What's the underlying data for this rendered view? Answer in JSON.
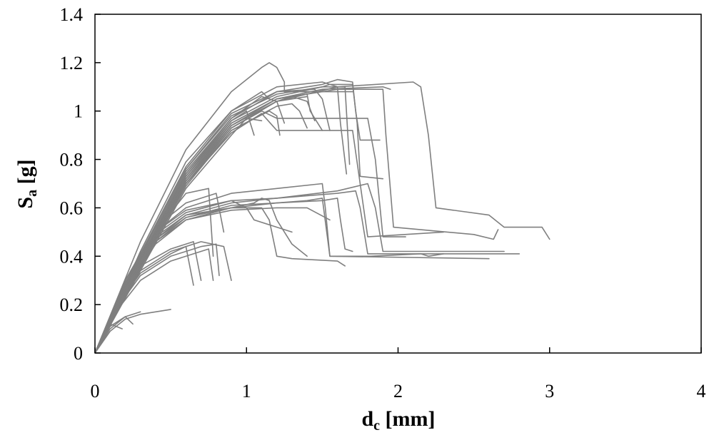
{
  "chart_data": {
    "type": "line",
    "title": "",
    "xlabel": {
      "main": "d",
      "sub": "c",
      "unit": " [mm]"
    },
    "ylabel": {
      "main": "S",
      "sub": "a",
      "unit": " [g]"
    },
    "xlim": [
      0,
      4
    ],
    "ylim": [
      0,
      1.4
    ],
    "xticks": [
      0,
      1,
      2,
      3,
      4
    ],
    "xtick_labels": [
      "0",
      "1",
      "2",
      "3",
      "4"
    ],
    "yticks": [
      0,
      0.2,
      0.4,
      0.6,
      0.8,
      1.0,
      1.2,
      1.4
    ],
    "ytick_labels": [
      "0",
      "0.2",
      "0.4",
      "0.6",
      "0.8",
      "1",
      "1.2",
      "1.4"
    ],
    "grid": false,
    "legend": "none",
    "line_color": "#7f7f7f",
    "series": [
      {
        "x": [
          0,
          0.3,
          0.6,
          0.9,
          1.1,
          1.15,
          1.2,
          1.25,
          1.25,
          1.7
        ],
        "y": [
          0,
          0.46,
          0.84,
          1.08,
          1.18,
          1.2,
          1.18,
          1.12,
          1.08,
          1.08
        ]
      },
      {
        "x": [
          0,
          0.3,
          0.6,
          0.9,
          1.2,
          1.5,
          1.6,
          1.62,
          1.66
        ],
        "y": [
          0,
          0.42,
          0.79,
          1.0,
          1.1,
          1.12,
          1.1,
          0.95,
          0.74
        ]
      },
      {
        "x": [
          0,
          0.3,
          0.6,
          0.9,
          1.2,
          1.5,
          1.55,
          1.7,
          1.73,
          1.75,
          1.9
        ],
        "y": [
          0,
          0.4,
          0.76,
          0.98,
          1.07,
          1.1,
          1.11,
          1.11,
          0.95,
          0.73,
          0.72
        ]
      },
      {
        "x": [
          0,
          0.3,
          0.6,
          0.9,
          1.2,
          1.6,
          1.9,
          1.92,
          1.97,
          2.5,
          2.63,
          2.66
        ],
        "y": [
          0,
          0.38,
          0.73,
          0.95,
          1.05,
          1.09,
          1.09,
          0.9,
          0.52,
          0.49,
          0.47,
          0.51
        ]
      },
      {
        "x": [
          0,
          0.3,
          0.6,
          0.9,
          1.2,
          1.6,
          2.1,
          2.15,
          2.2,
          2.25,
          2.6,
          2.7,
          2.95,
          3.0
        ],
        "y": [
          0,
          0.37,
          0.72,
          0.94,
          1.04,
          1.1,
          1.12,
          1.1,
          0.9,
          0.6,
          0.57,
          0.52,
          0.52,
          0.47
        ]
      },
      {
        "x": [
          0,
          0.3,
          0.6,
          0.9,
          1.2,
          1.3,
          1.4,
          1.45
        ],
        "y": [
          0,
          0.36,
          0.7,
          0.93,
          1.04,
          1.06,
          1.04,
          0.96
        ]
      },
      {
        "x": [
          0,
          0.3,
          0.6,
          0.9,
          1.1,
          1.2,
          1.8,
          1.85,
          1.9,
          2.05
        ],
        "y": [
          0,
          0.37,
          0.71,
          0.93,
          1.0,
          0.97,
          0.97,
          0.8,
          0.48,
          0.48
        ]
      },
      {
        "x": [
          0,
          0.3,
          0.6,
          0.9,
          1.1,
          1.2,
          1.7,
          1.75,
          1.8,
          2.3
        ],
        "y": [
          0,
          0.36,
          0.7,
          0.91,
          0.99,
          0.92,
          0.92,
          0.7,
          0.48,
          0.5
        ]
      },
      {
        "x": [
          0,
          0.3,
          0.6,
          0.9,
          1.0,
          1.05
        ],
        "y": [
          0,
          0.38,
          0.74,
          0.96,
          1.0,
          0.9
        ]
      },
      {
        "x": [
          0,
          0.3,
          0.6,
          0.9,
          1.1,
          1.2,
          1.25
        ],
        "y": [
          0,
          0.39,
          0.75,
          0.97,
          1.06,
          1.04,
          0.95
        ]
      },
      {
        "x": [
          0,
          0.3,
          0.6,
          0.9,
          1.2,
          1.4,
          1.42,
          1.5
        ],
        "y": [
          0,
          0.38,
          0.72,
          0.95,
          1.05,
          1.07,
          1.0,
          0.92
        ]
      },
      {
        "x": [
          0,
          0.3,
          0.6,
          0.9,
          1.2,
          1.45,
          1.5,
          1.55
        ],
        "y": [
          0,
          0.39,
          0.74,
          0.97,
          1.08,
          1.09,
          1.05,
          0.92
        ]
      },
      {
        "x": [
          0,
          0.3,
          0.6,
          0.9,
          1.2,
          1.5,
          1.6,
          1.7,
          1.72,
          1.75,
          1.88
        ],
        "y": [
          0,
          0.4,
          0.76,
          0.99,
          1.08,
          1.11,
          1.13,
          1.12,
          1.0,
          0.88,
          0.88
        ]
      },
      {
        "x": [
          0,
          0.3,
          0.6,
          0.9,
          1.2,
          1.4
        ],
        "y": [
          0,
          0.37,
          0.71,
          0.94,
          1.04,
          1.06
        ]
      },
      {
        "x": [
          0,
          0.3,
          0.6,
          0.9,
          1.2,
          1.3,
          1.35,
          1.4
        ],
        "y": [
          0,
          0.35,
          0.69,
          0.92,
          1.02,
          1.03,
          1.0,
          0.93
        ]
      },
      {
        "x": [
          0,
          0.3,
          0.6,
          0.9,
          1.0,
          1.1
        ],
        "y": [
          0,
          0.34,
          0.68,
          0.9,
          0.97,
          0.96
        ]
      },
      {
        "x": [
          0,
          0.3,
          0.6,
          0.9,
          1.2,
          1.5,
          1.65,
          1.68
        ],
        "y": [
          0,
          0.38,
          0.73,
          0.96,
          1.06,
          1.1,
          1.1,
          0.78
        ]
      },
      {
        "x": [
          0,
          0.3,
          0.6,
          0.9,
          1.1,
          1.15
        ],
        "y": [
          0,
          0.41,
          0.77,
          1.0,
          1.08,
          1.05
        ]
      },
      {
        "x": [
          0,
          0.3,
          0.6,
          0.9,
          1.2,
          1.5,
          1.9,
          1.95
        ],
        "y": [
          0,
          0.36,
          0.71,
          0.94,
          1.05,
          1.09,
          1.1,
          1.09
        ]
      },
      {
        "x": [
          0,
          0.3,
          0.6,
          0.9,
          1.15,
          1.2,
          1.22
        ],
        "y": [
          0,
          0.35,
          0.7,
          0.92,
          1.0,
          0.98,
          0.9
        ]
      },
      {
        "x": [
          0,
          0.2,
          0.4,
          0.6,
          0.9,
          1.2,
          1.5,
          1.52,
          1.55,
          1.7,
          1.8,
          1.82,
          2.15,
          2.2,
          2.3
        ],
        "y": [
          0,
          0.3,
          0.5,
          0.6,
          0.66,
          0.68,
          0.7,
          0.6,
          0.4,
          0.4,
          0.4,
          0.4,
          0.41,
          0.4,
          0.41
        ]
      },
      {
        "x": [
          0,
          0.2,
          0.4,
          0.6,
          0.9,
          1.2,
          1.6,
          1.72,
          1.75,
          1.8,
          2.8
        ],
        "y": [
          0,
          0.29,
          0.49,
          0.58,
          0.63,
          0.64,
          0.66,
          0.67,
          0.6,
          0.41,
          0.41
        ]
      },
      {
        "x": [
          0,
          0.2,
          0.4,
          0.6,
          0.9,
          1.2,
          1.6,
          1.8,
          1.85,
          1.9,
          2.7
        ],
        "y": [
          0,
          0.28,
          0.47,
          0.57,
          0.62,
          0.64,
          0.67,
          0.7,
          0.6,
          0.42,
          0.42
        ]
      },
      {
        "x": [
          0,
          0.2,
          0.4,
          0.6,
          0.9,
          1.05,
          1.1,
          1.15,
          1.2,
          1.3,
          1.4
        ],
        "y": [
          0,
          0.28,
          0.48,
          0.57,
          0.6,
          0.62,
          0.64,
          0.63,
          0.55,
          0.45,
          0.4
        ]
      },
      {
        "x": [
          0,
          0.2,
          0.4,
          0.6,
          0.9,
          1.05,
          1.1,
          1.15,
          1.2,
          1.3,
          1.6,
          1.65
        ],
        "y": [
          0,
          0.27,
          0.46,
          0.56,
          0.6,
          0.6,
          0.6,
          0.55,
          0.4,
          0.39,
          0.38,
          0.36
        ]
      },
      {
        "x": [
          0,
          0.2,
          0.4,
          0.6,
          0.9,
          1.2,
          1.4,
          1.5,
          1.55,
          2.6
        ],
        "y": [
          0,
          0.27,
          0.46,
          0.55,
          0.6,
          0.62,
          0.63,
          0.64,
          0.4,
          0.39
        ]
      },
      {
        "x": [
          0,
          0.2,
          0.4,
          0.6,
          0.9,
          1.2,
          1.5,
          1.6,
          1.62,
          1.65,
          1.7
        ],
        "y": [
          0,
          0.28,
          0.47,
          0.56,
          0.61,
          0.62,
          0.63,
          0.64,
          0.55,
          0.43,
          0.42
        ]
      },
      {
        "x": [
          0,
          0.2,
          0.4,
          0.6,
          0.9,
          1.0,
          1.05,
          1.3
        ],
        "y": [
          0,
          0.29,
          0.5,
          0.59,
          0.63,
          0.6,
          0.55,
          0.5
        ]
      },
      {
        "x": [
          0,
          0.2,
          0.4,
          0.6,
          0.9,
          1.2,
          1.4,
          1.55
        ],
        "y": [
          0,
          0.26,
          0.45,
          0.55,
          0.59,
          0.6,
          0.6,
          0.55
        ]
      },
      {
        "x": [
          0,
          0.2,
          0.4,
          0.6,
          0.8,
          0.85
        ],
        "y": [
          0,
          0.3,
          0.52,
          0.62,
          0.66,
          0.5
        ]
      },
      {
        "x": [
          0,
          0.2,
          0.4,
          0.6,
          0.75,
          0.78
        ],
        "y": [
          0,
          0.3,
          0.5,
          0.66,
          0.68,
          0.4
        ]
      },
      {
        "x": [
          0,
          0.15,
          0.3,
          0.5,
          0.7,
          0.85,
          0.9
        ],
        "y": [
          0,
          0.2,
          0.34,
          0.42,
          0.46,
          0.44,
          0.3
        ]
      },
      {
        "x": [
          0,
          0.15,
          0.3,
          0.5,
          0.65,
          0.7
        ],
        "y": [
          0,
          0.22,
          0.36,
          0.43,
          0.46,
          0.3
        ]
      },
      {
        "x": [
          0,
          0.15,
          0.3,
          0.5,
          0.7,
          0.8,
          0.82
        ],
        "y": [
          0,
          0.19,
          0.32,
          0.4,
          0.44,
          0.45,
          0.32
        ]
      },
      {
        "x": [
          0,
          0.15,
          0.3,
          0.5,
          0.7,
          0.75,
          0.78
        ],
        "y": [
          0,
          0.18,
          0.3,
          0.38,
          0.42,
          0.43,
          0.3
        ]
      },
      {
        "x": [
          0,
          0.15,
          0.3,
          0.5,
          0.6,
          0.65
        ],
        "y": [
          0,
          0.2,
          0.33,
          0.41,
          0.44,
          0.28
        ]
      },
      {
        "x": [
          0,
          0.1,
          0.2,
          0.3
        ],
        "y": [
          0,
          0.1,
          0.15,
          0.17
        ]
      },
      {
        "x": [
          0,
          0.1,
          0.2,
          0.3,
          0.5
        ],
        "y": [
          0,
          0.09,
          0.14,
          0.16,
          0.18
        ]
      },
      {
        "x": [
          0,
          0.1,
          0.2,
          0.25
        ],
        "y": [
          0,
          0.11,
          0.15,
          0.12
        ]
      },
      {
        "x": [
          0,
          0.1,
          0.18
        ],
        "y": [
          0,
          0.12,
          0.1
        ]
      }
    ]
  }
}
